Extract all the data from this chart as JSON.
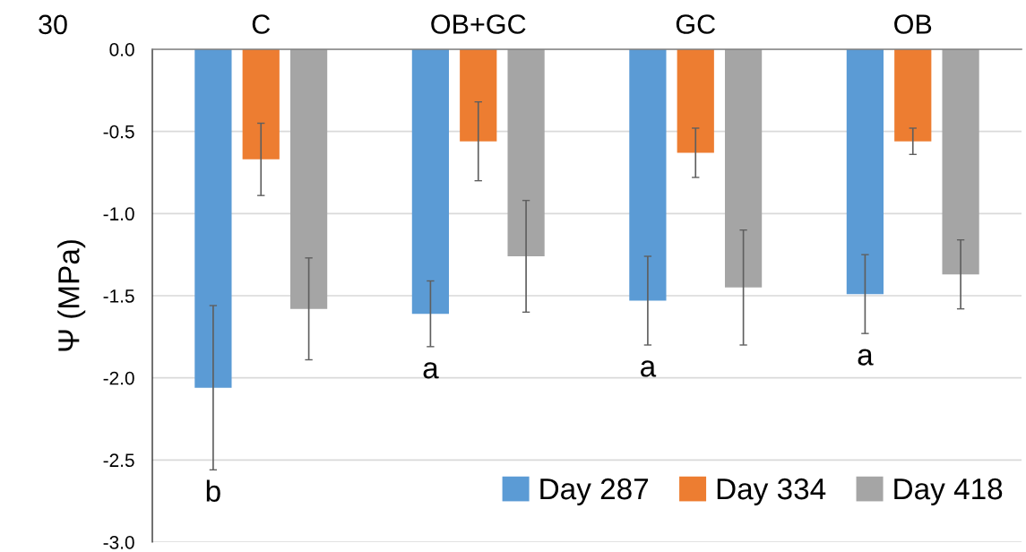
{
  "chart_data": {
    "type": "bar",
    "ylabel": "Ψ (MPa)",
    "categories": [
      "C",
      "OB+GC",
      "GC",
      "OB"
    ],
    "series": [
      {
        "name": "Day 287",
        "color": "#5b9bd5",
        "values": [
          -2.06,
          -1.61,
          -1.53,
          -1.49
        ],
        "errors": [
          0.5,
          0.2,
          0.27,
          0.24
        ]
      },
      {
        "name": "Day 334",
        "color": "#ed7d31",
        "values": [
          -0.67,
          -0.56,
          -0.63,
          -0.56
        ],
        "errors": [
          0.22,
          0.24,
          0.15,
          0.08
        ]
      },
      {
        "name": "Day 418",
        "color": "#a5a5a5",
        "values": [
          -1.58,
          -1.26,
          -1.45,
          -1.37
        ],
        "errors": [
          0.31,
          0.34,
          0.35,
          0.21
        ]
      }
    ],
    "ylim": [
      -3.0,
      0.0
    ],
    "yticks": [
      {
        "value": -3.0,
        "label": "-3.0"
      },
      {
        "value": -2.5,
        "label": "-2.5"
      },
      {
        "value": -2.0,
        "label": "-2.0"
      },
      {
        "value": -1.5,
        "label": "-1.5"
      },
      {
        "value": -1.0,
        "label": "-1.0"
      },
      {
        "value": -0.5,
        "label": "-0.5"
      },
      {
        "value": 0.0,
        "label": "0.0"
      }
    ],
    "grid": "y",
    "legend": "bottom right",
    "annotations": [
      "30",
      "b",
      "a",
      "a",
      "a"
    ]
  }
}
